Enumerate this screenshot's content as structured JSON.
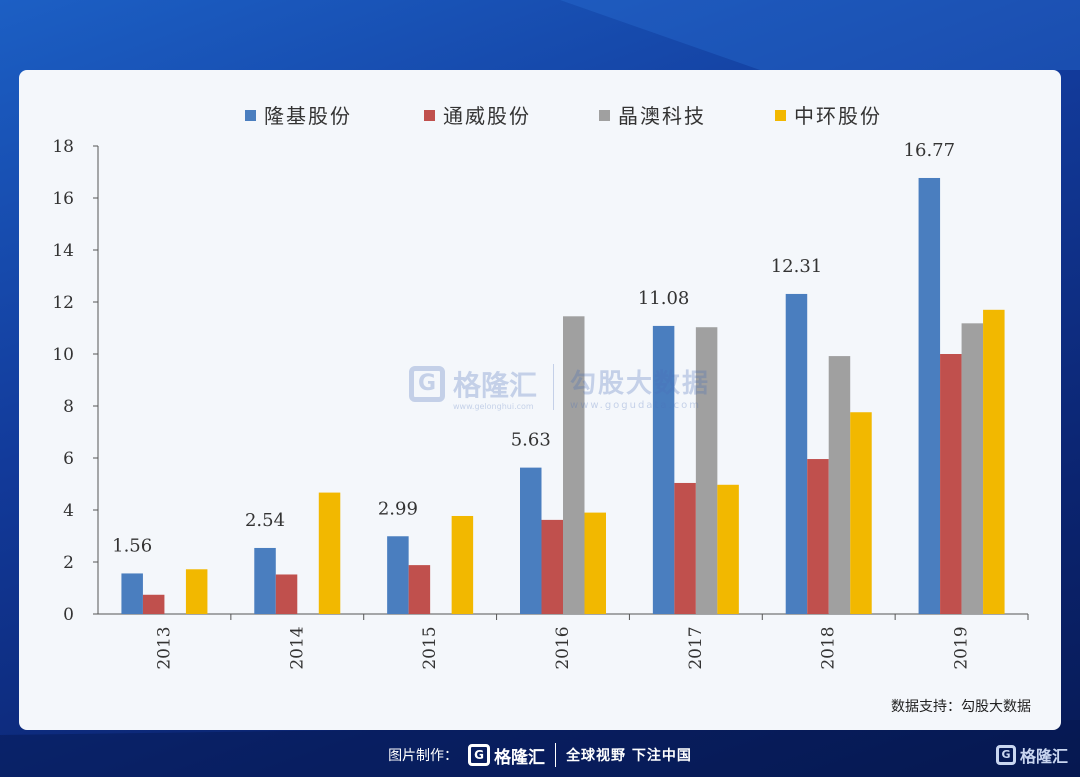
{
  "chart_data": {
    "type": "bar",
    "categories": [
      "2013",
      "2014",
      "2015",
      "2016",
      "2017",
      "2018",
      "2019"
    ],
    "series": [
      {
        "name": "隆基股份",
        "color": "#4a7ebf",
        "values": [
          1.56,
          2.54,
          2.99,
          5.63,
          11.08,
          12.31,
          16.77
        ]
      },
      {
        "name": "通威股份",
        "color": "#c0504d",
        "values": [
          0.74,
          1.52,
          1.88,
          3.62,
          5.04,
          5.96,
          10.0
        ]
      },
      {
        "name": "晶澳科技",
        "color": "#a0a0a0",
        "values": [
          0,
          0,
          0,
          11.45,
          11.03,
          9.92,
          11.18
        ]
      },
      {
        "name": "中环股份",
        "color": "#f2b800",
        "values": [
          1.72,
          4.67,
          3.77,
          3.9,
          4.97,
          7.76,
          11.7
        ]
      }
    ],
    "data_labels": [
      "1.56",
      "2.54",
      "2.99",
      "5.63",
      "11.08",
      "12.31",
      "16.77"
    ],
    "y_ticks": [
      "0",
      "2",
      "4",
      "6",
      "8",
      "10",
      "12",
      "14",
      "16",
      "18"
    ],
    "ylim": [
      0,
      18
    ],
    "legend_position": "top",
    "grid": false
  },
  "source_text": "数据支持：勾股大数据",
  "watermark": {
    "logo_glyph": "G",
    "brand": "格隆汇",
    "brand_sub": "www.gelonghui.com",
    "partner": "勾股大数据",
    "partner_url": "www.gogudata.com"
  },
  "footer": {
    "label": "图片制作：",
    "logo_glyph": "G",
    "brand": "格隆汇",
    "slogan": "全球视野 下注中国"
  },
  "corner": {
    "logo_glyph": "G",
    "brand": "格隆汇"
  }
}
